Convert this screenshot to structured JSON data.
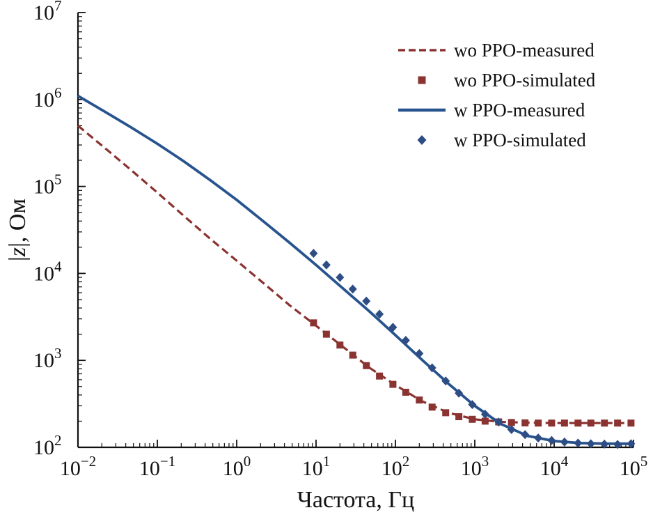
{
  "chart_data": {
    "type": "line",
    "title": "",
    "xlabel": "Частота, Гц",
    "ylabel": "|z|, Ом",
    "x_scale": "log",
    "y_scale": "log",
    "xlim": [
      0.01,
      100000
    ],
    "ylim": [
      100,
      10000000
    ],
    "grid": false,
    "legend_position": "upper right",
    "axis_color": "#111111",
    "series": [
      {
        "name": "wo PPO-measured",
        "type": "line",
        "line_style": "dashed",
        "color": "#8a3331",
        "x": [
          0.01,
          0.0215,
          0.0464,
          0.1,
          0.215,
          0.464,
          1,
          2.15,
          4.64,
          10,
          21.5,
          46.4,
          100,
          215,
          464,
          1000,
          2150,
          4640,
          10000,
          21500,
          46400,
          100000
        ],
        "y": [
          500000,
          280000,
          155000,
          85000,
          46000,
          25000,
          14000,
          7800,
          4300,
          2500,
          1450,
          830,
          520,
          340,
          250,
          210,
          196,
          192,
          190,
          190,
          190,
          190
        ]
      },
      {
        "name": "wo PPO-simulated",
        "type": "scatter",
        "marker": "square",
        "color": "#8a3331",
        "x": [
          9.3,
          13.5,
          20,
          29,
          43,
          63,
          93,
          135,
          200,
          290,
          430,
          630,
          930,
          1350,
          2000,
          2900,
          4300,
          6300,
          9300,
          13500,
          20000,
          29000,
          43000,
          63000,
          93000
        ],
        "y": [
          2700,
          2000,
          1500,
          1150,
          870,
          660,
          530,
          430,
          350,
          290,
          250,
          225,
          210,
          200,
          196,
          193,
          191,
          190,
          190,
          190,
          190,
          190,
          190,
          190,
          190
        ]
      },
      {
        "name": "w PPO-measured",
        "type": "line",
        "line_style": "solid",
        "color": "#27538e",
        "x": [
          0.01,
          0.0215,
          0.0464,
          0.1,
          0.215,
          0.464,
          1,
          2.15,
          4.64,
          10,
          21.5,
          46.4,
          100,
          215,
          464,
          1000,
          2150,
          4640,
          10000,
          21500,
          46400,
          100000
        ],
        "y": [
          1100000,
          730000,
          480000,
          310000,
          195000,
          118000,
          70000,
          40000,
          22500,
          12500,
          6800,
          3700,
          1950,
          1020,
          540,
          300,
          185,
          135,
          118,
          112,
          110,
          110
        ]
      },
      {
        "name": "w PPO-simulated",
        "type": "scatter",
        "marker": "diamond",
        "color": "#2e4d85",
        "x": [
          9.3,
          13.5,
          20,
          29,
          43,
          63,
          93,
          135,
          200,
          290,
          430,
          630,
          930,
          1350,
          2000,
          2900,
          4300,
          6300,
          9300,
          13500,
          20000,
          29000,
          43000,
          63000,
          93000
        ],
        "y": [
          17000,
          12500,
          9000,
          6600,
          4800,
          3400,
          2400,
          1700,
          1200,
          820,
          580,
          420,
          310,
          240,
          195,
          160,
          140,
          128,
          120,
          115,
          112,
          110,
          109,
          108,
          110
        ]
      }
    ]
  }
}
